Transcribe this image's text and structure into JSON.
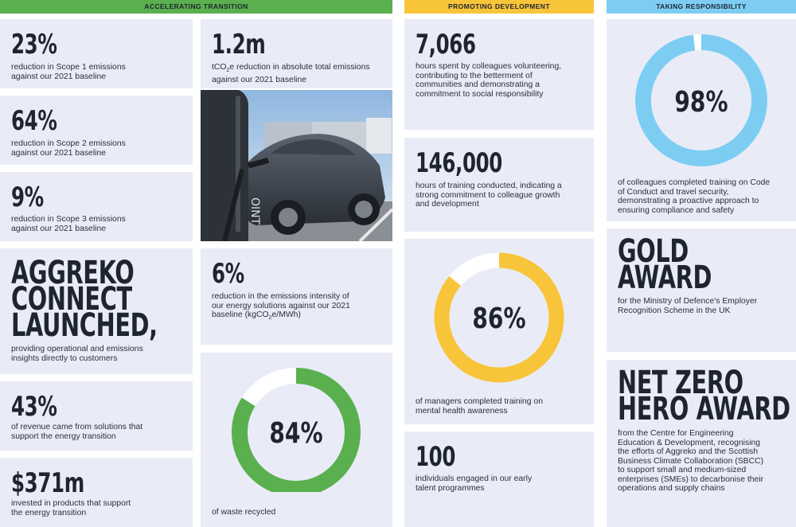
{
  "headers": {
    "accelerating": "ACCELERATING TRANSITION",
    "promoting": "PROMOTING DEVELOPMENT",
    "taking": "TAKING RESPONSIBILITY"
  },
  "colors": {
    "green": "#5aaf4f",
    "yellow": "#f8c43a",
    "blue": "#7dcdf3",
    "card": "#e9ecf7"
  },
  "accelerating": {
    "scope1": {
      "value": "23%",
      "text": "reduction in Scope 1 emissions against our 2021 baseline"
    },
    "scope2": {
      "value": "64%",
      "text": "reduction in Scope 2 emissions against our 2021 baseline"
    },
    "scope3": {
      "value": "9%",
      "text": "reduction in Scope 3 emissions against our 2021 baseline"
    },
    "connect": {
      "value_line1": "AGGREKO",
      "value_line2": "CONNECT",
      "value_line3": "LAUNCHED,",
      "text": "providing operational and emissions insights directly to customers"
    },
    "revenue": {
      "value": "43%",
      "text": "of revenue came from solutions that support the energy transition"
    },
    "invested": {
      "value": "$371m",
      "text": "invested in products that support the energy transition"
    },
    "absolute": {
      "value": "1.2m",
      "text_pre": "tCO",
      "text_sub": "2",
      "text_post": "e reduction in absolute total emissions against our 2021 baseline"
    },
    "intensity": {
      "value": "6%",
      "text_pre": "reduction in the emissions intensity of our energy solutions against our 2021 baseline (kgCO",
      "text_sub": "2",
      "text_post": "e/MWh)"
    },
    "waste": {
      "value": "84%",
      "percent": 84,
      "text": "of waste recycled"
    }
  },
  "promoting": {
    "volunteer": {
      "value": "7,066",
      "text": "hours spent by colleagues volunteering, contributing to the betterment of communities and demonstrating a commitment to social responsibility"
    },
    "training": {
      "value": "146,000",
      "text": "hours of training conducted, indicating a strong commitment to colleague growth and development"
    },
    "managers": {
      "value": "86%",
      "percent": 86,
      "text": "of managers completed training on mental health awareness"
    },
    "talent": {
      "value": "100",
      "text": "individuals engaged in our early talent programmes"
    }
  },
  "taking": {
    "conduct": {
      "value": "98%",
      "percent": 98,
      "text": "of colleagues completed training on Code of Conduct and travel security, demonstrating a proactive approach to ensuring compliance and safety"
    },
    "gold": {
      "value_line1": "GOLD",
      "value_line2": "AWARD",
      "text": "for the Ministry of Defence's Employer Recognition Scheme in the UK"
    },
    "netzero": {
      "value_line1": "NET ZERO",
      "value_line2": "HERO AWARD",
      "text": "from the Centre for Engineering Education & Development, recognising the efforts of Aggreko and the Scottish Business Climate Collaboration (SBCC) to support small and medium-sized enterprises (SMEs) to decarbonise their operations and supply chains"
    }
  },
  "photo": {
    "charger_text": "OINT"
  }
}
